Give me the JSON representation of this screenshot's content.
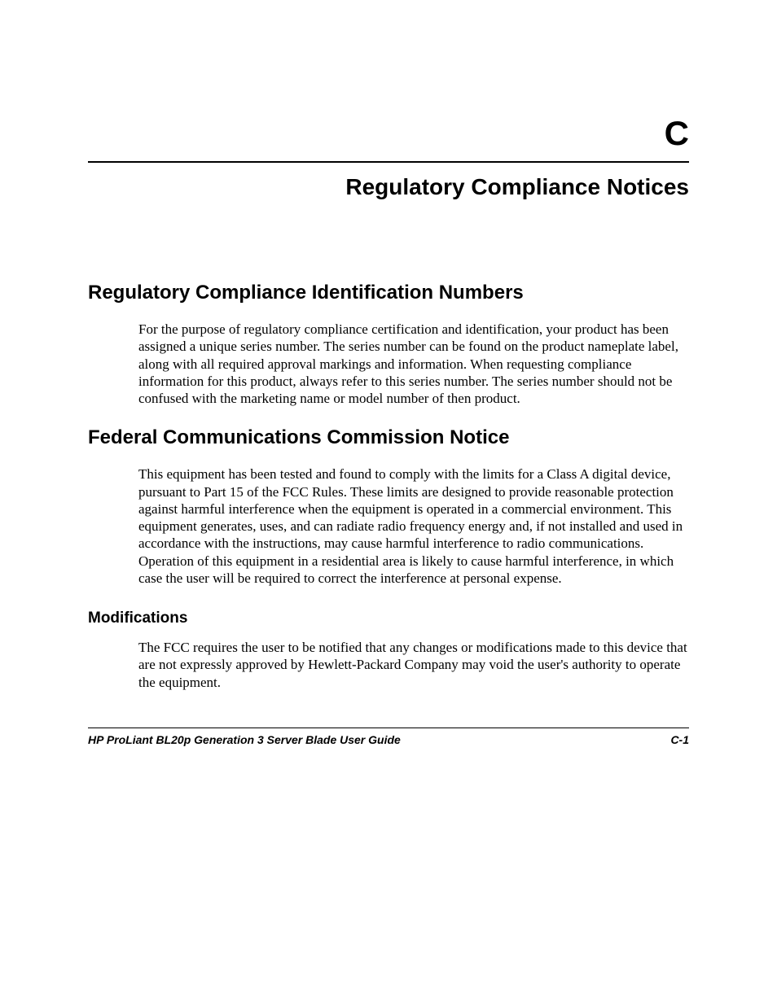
{
  "page": {
    "background_color": "#ffffff",
    "text_color": "#000000"
  },
  "header": {
    "appendix_letter": "C",
    "chapter_title": "Regulatory Compliance Notices"
  },
  "sections": {
    "s1": {
      "heading": "Regulatory Compliance Identification Numbers",
      "body": "For the purpose of regulatory compliance certification and identification, your product has been assigned a unique series number. The series number can be found on the product nameplate label, along with all required approval markings and information. When requesting compliance information for this product, always refer to this series number. The series number should not be confused with the marketing name or model number of then product."
    },
    "s2": {
      "heading": "Federal Communications Commission Notice",
      "body": "This equipment has been tested and found to comply with the limits for a Class A digital device, pursuant to Part 15 of the FCC Rules. These limits are designed to provide reasonable protection against harmful interference when the equipment is operated in a commercial environment. This equipment generates, uses, and can radiate radio frequency energy and, if not installed and used in accordance with the instructions, may cause harmful interference to radio communications. Operation of this equipment in a residential area is likely to cause harmful interference, in which case the user will be required to correct the interference at personal expense."
    },
    "s3": {
      "heading": "Modifications",
      "body": "The FCC requires the user to be notified that any changes or modifications made to this device that are not expressly approved by Hewlett-Packard Company may void the user's authority to operate the equipment."
    }
  },
  "footer": {
    "doc_title": "HP ProLiant BL20p Generation 3 Server Blade User Guide",
    "page_number": "C-1"
  },
  "typography": {
    "heading_font": "Arial",
    "body_font": "Times New Roman",
    "appendix_letter_size_pt": 42,
    "chapter_title_size_pt": 28,
    "h1_size_pt": 24,
    "h2_size_pt": 19,
    "body_size_pt": 17,
    "footer_size_pt": 14
  }
}
